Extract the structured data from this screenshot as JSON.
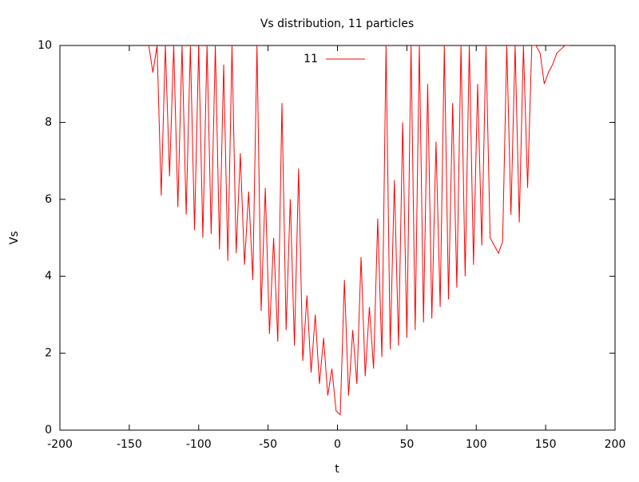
{
  "chart_data": {
    "type": "line",
    "title": "Vs distribution, 11 particles",
    "xlabel": "t",
    "ylabel": "Vs",
    "x": [
      -136,
      -133,
      -130,
      -127,
      -124,
      -121,
      -118,
      -115,
      -112,
      -109,
      -106,
      -103,
      -100,
      -97,
      -94,
      -91,
      -88,
      -85,
      -82,
      -79,
      -76,
      -73,
      -70,
      -67,
      -64,
      -61,
      -58,
      -55,
      -52,
      -49,
      -46,
      -43,
      -40,
      -37,
      -34,
      -31,
      -28,
      -25,
      -22,
      -19,
      -16,
      -13,
      -10,
      -7,
      -4,
      -1,
      2,
      5,
      8,
      11,
      14,
      17,
      20,
      23,
      26,
      29,
      32,
      35,
      38,
      41,
      44,
      47,
      50,
      53,
      56,
      59,
      62,
      65,
      68,
      71,
      74,
      77,
      80,
      83,
      86,
      89,
      92,
      95,
      98,
      101,
      104,
      107,
      110,
      113,
      116,
      119,
      122,
      125,
      128,
      131,
      134,
      137,
      140,
      143,
      146,
      149,
      152,
      155,
      158,
      161,
      164,
      167
    ],
    "series": [
      {
        "name": "11",
        "color": "#ff0000",
        "values": [
          10,
          9.3,
          10,
          6.1,
          10,
          6.6,
          10,
          5.8,
          10,
          5.6,
          10,
          5.2,
          10,
          5.0,
          10,
          5.1,
          10,
          4.7,
          9.5,
          4.4,
          10,
          4.6,
          7.2,
          4.3,
          6.2,
          3.9,
          10,
          3.1,
          6.3,
          2.5,
          5.0,
          2.3,
          8.5,
          2.6,
          6.0,
          2.2,
          6.8,
          1.8,
          3.5,
          1.5,
          3.0,
          1.2,
          2.4,
          0.9,
          1.6,
          0.5,
          0.4,
          3.9,
          0.9,
          2.6,
          1.2,
          4.5,
          1.4,
          3.2,
          1.6,
          5.5,
          1.9,
          10,
          2.1,
          6.5,
          2.2,
          8.0,
          2.4,
          10,
          2.6,
          10,
          2.8,
          9.0,
          2.9,
          7.5,
          3.2,
          10,
          3.4,
          8.5,
          3.7,
          10,
          4.0,
          10,
          4.3,
          9.0,
          4.8,
          10,
          5.0,
          4.8,
          4.6,
          4.9,
          10,
          5.6,
          10,
          5.4,
          10,
          6.3,
          10,
          10,
          9.8,
          9.0,
          9.3,
          9.5,
          9.8,
          9.9,
          10,
          10
        ]
      }
    ],
    "xlim": [
      -200,
      200
    ],
    "xticks": [
      -200,
      -150,
      -100,
      -50,
      0,
      50,
      100,
      150,
      200
    ],
    "ylim": [
      0,
      10
    ],
    "yticks": [
      0,
      2,
      4,
      6,
      8,
      10
    ],
    "legend": "top-center"
  }
}
